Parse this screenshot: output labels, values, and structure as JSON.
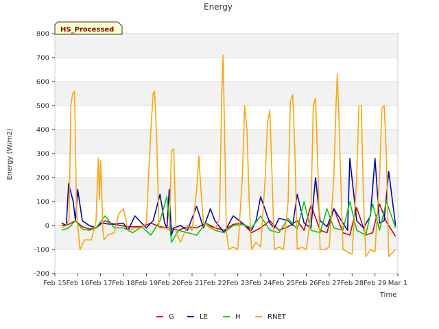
{
  "chart_data": {
    "type": "line",
    "title": "Energy",
    "badge": "HS_Processed",
    "xlabel": "Time",
    "ylabel": "Energy (W/m2)",
    "ylim": [
      -200,
      800
    ],
    "yticks": [
      -200,
      -100,
      0,
      100,
      200,
      300,
      400,
      500,
      600,
      700,
      800
    ],
    "xlim": [
      0,
      15
    ],
    "x_tick_labels": [
      "Feb 15",
      "Feb 16",
      "Feb 17",
      "Feb 18",
      "Feb 19",
      "Feb 20",
      "Feb 21",
      "Feb 22",
      "Feb 23",
      "Feb 24",
      "Feb 25",
      "Feb 26",
      "Feb 27",
      "Feb 28",
      "Feb 29",
      "Mar 1"
    ],
    "grid": true,
    "banded_background": true,
    "legend_position": "bottom-center",
    "series": [
      {
        "name": "G",
        "color": "#dd0000",
        "x": [
          0.3,
          0.6,
          0.9,
          1.2,
          1.5,
          1.8,
          2.2,
          2.6,
          3.2,
          3.8,
          4.2,
          4.6,
          5.0,
          5.4,
          5.8,
          6.2,
          6.6,
          7.0,
          7.4,
          7.8,
          8.2,
          8.6,
          9.0,
          9.4,
          9.8,
          10.2,
          10.6,
          10.9,
          11.2,
          11.6,
          11.9,
          12.2,
          12.6,
          12.9,
          13.2,
          13.6,
          13.9,
          14.2,
          14.5,
          14.9
        ],
        "values": [
          0,
          5,
          20,
          -5,
          -15,
          -10,
          20,
          5,
          -5,
          -5,
          10,
          -5,
          -10,
          -20,
          -5,
          -10,
          10,
          -10,
          -20,
          5,
          10,
          -30,
          -10,
          20,
          -20,
          -5,
          20,
          -20,
          85,
          -20,
          -30,
          70,
          -30,
          -40,
          75,
          -40,
          -30,
          90,
          15,
          -45
        ]
      },
      {
        "name": "LE",
        "color": "#0000cc",
        "x": [
          0.3,
          0.5,
          0.6,
          0.8,
          0.9,
          1.0,
          1.2,
          1.5,
          1.8,
          2.0,
          2.5,
          3.0,
          3.2,
          3.5,
          4.0,
          4.3,
          4.6,
          4.8,
          4.9,
          5.0,
          5.1,
          5.2,
          5.5,
          5.8,
          6.2,
          6.5,
          6.8,
          7.0,
          7.4,
          7.8,
          8.2,
          8.6,
          8.8,
          9.0,
          9.4,
          9.6,
          9.8,
          10.2,
          10.4,
          10.6,
          10.9,
          11.2,
          11.4,
          11.6,
          11.9,
          12.2,
          12.6,
          12.8,
          12.9,
          13.2,
          13.5,
          13.8,
          14.0,
          14.2,
          14.4,
          14.6,
          14.9
        ],
        "values": [
          10,
          0,
          175,
          100,
          20,
          150,
          20,
          0,
          -10,
          10,
          5,
          10,
          -20,
          40,
          -10,
          20,
          130,
          10,
          -10,
          150,
          -40,
          -10,
          0,
          -20,
          80,
          -10,
          70,
          20,
          -30,
          40,
          10,
          -20,
          20,
          120,
          10,
          -10,
          30,
          20,
          0,
          130,
          10,
          -10,
          200,
          20,
          -5,
          70,
          10,
          -20,
          280,
          20,
          -10,
          40,
          280,
          10,
          20,
          225,
          0
        ]
      },
      {
        "name": "H",
        "color": "#00cc00",
        "x": [
          0.3,
          0.6,
          0.9,
          1.2,
          1.5,
          1.8,
          2.2,
          2.6,
          3.0,
          3.4,
          3.8,
          4.2,
          4.6,
          4.9,
          5.1,
          5.4,
          5.8,
          6.2,
          6.6,
          7.0,
          7.4,
          7.8,
          8.2,
          8.6,
          9.0,
          9.4,
          9.8,
          10.2,
          10.6,
          10.9,
          11.2,
          11.6,
          11.9,
          12.2,
          12.6,
          12.9,
          13.2,
          13.6,
          13.9,
          14.2,
          14.5,
          14.9
        ],
        "values": [
          -20,
          -10,
          20,
          -15,
          -20,
          -10,
          40,
          -10,
          -10,
          -30,
          -5,
          -40,
          20,
          120,
          -70,
          -20,
          -30,
          -40,
          10,
          -20,
          -30,
          0,
          5,
          -10,
          40,
          -20,
          -30,
          30,
          -15,
          100,
          -20,
          -30,
          70,
          -10,
          -20,
          100,
          -20,
          -40,
          90,
          -20,
          100,
          -10
        ]
      },
      {
        "name": "RNET",
        "color": "#ffa500",
        "x": [
          0.3,
          0.5,
          0.62,
          0.7,
          0.78,
          0.86,
          0.95,
          1.1,
          1.3,
          1.6,
          1.8,
          1.9,
          1.95,
          2.0,
          2.05,
          2.1,
          2.15,
          2.3,
          2.6,
          2.8,
          3.0,
          3.2,
          3.5,
          3.8,
          4.0,
          4.2,
          4.3,
          4.36,
          4.45,
          4.55,
          4.8,
          5.0,
          5.1,
          5.2,
          5.3,
          5.5,
          5.8,
          6.0,
          6.2,
          6.3,
          6.35,
          6.5,
          6.8,
          7.0,
          7.2,
          7.3,
          7.36,
          7.42,
          7.5,
          7.6,
          7.8,
          8.0,
          8.2,
          8.3,
          8.4,
          8.5,
          8.6,
          8.8,
          9.0,
          9.2,
          9.3,
          9.4,
          9.5,
          9.6,
          9.8,
          10.0,
          10.2,
          10.3,
          10.4,
          10.5,
          10.6,
          10.8,
          11.0,
          11.2,
          11.3,
          11.4,
          11.5,
          11.6,
          11.8,
          12.0,
          12.2,
          12.3,
          12.35,
          12.4,
          12.5,
          12.6,
          12.8,
          13.0,
          13.2,
          13.3,
          13.4,
          13.5,
          13.6,
          13.8,
          14.0,
          14.2,
          14.3,
          14.4,
          14.5,
          14.6,
          14.8,
          14.9
        ],
        "values": [
          -10,
          0,
          30,
          500,
          550,
          560,
          50,
          -100,
          -60,
          -60,
          20,
          280,
          110,
          270,
          150,
          -20,
          -60,
          -40,
          -30,
          50,
          70,
          -20,
          -10,
          -10,
          10,
          400,
          550,
          560,
          380,
          -10,
          -10,
          -20,
          310,
          320,
          -30,
          -70,
          0,
          -20,
          150,
          290,
          200,
          10,
          -10,
          -20,
          30,
          550,
          710,
          400,
          -20,
          -100,
          -90,
          -100,
          200,
          500,
          400,
          100,
          -100,
          -70,
          -90,
          200,
          430,
          480,
          200,
          -100,
          -90,
          -100,
          100,
          520,
          545,
          300,
          -100,
          -90,
          -100,
          50,
          500,
          530,
          250,
          -100,
          -100,
          -90,
          200,
          510,
          630,
          520,
          200,
          -100,
          -110,
          -120,
          200,
          500,
          500,
          100,
          -130,
          -100,
          -110,
          200,
          490,
          500,
          300,
          -130,
          -110,
          -100
        ]
      }
    ]
  }
}
